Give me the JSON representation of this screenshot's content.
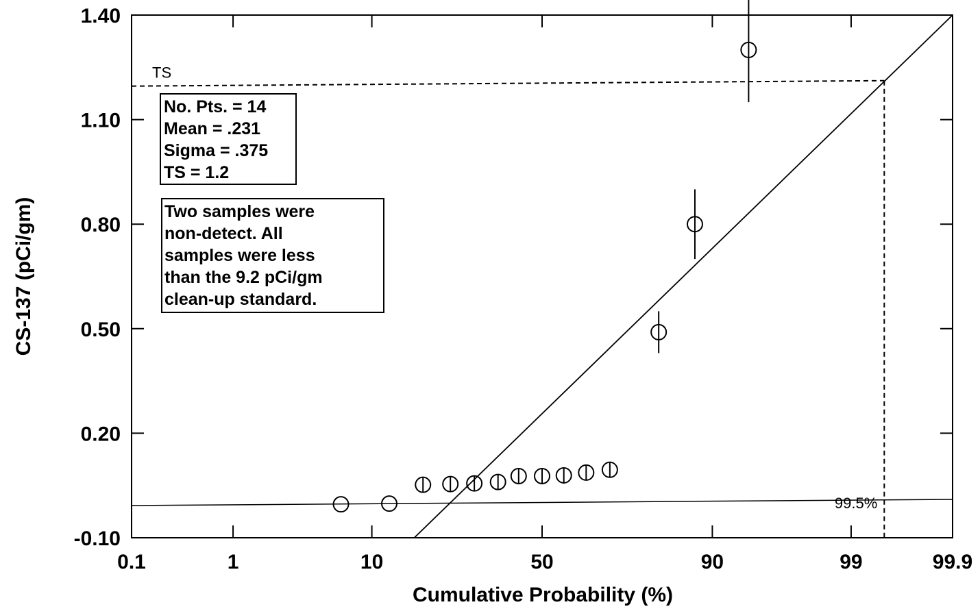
{
  "chart_data": {
    "type": "scatter",
    "title": "",
    "xlabel": "Cumulative Probability (%)",
    "ylabel": "CS-137 (pCi/gm)",
    "x_scale": "probability",
    "x_ticks": [
      "0.1",
      "1",
      "10",
      "50",
      "90",
      "99",
      "99.9"
    ],
    "y_ticks": [
      "1.40",
      "1.10",
      "0.80",
      "0.50",
      "0.20",
      "-0.10"
    ],
    "ylim": [
      -0.1,
      1.4
    ],
    "xlim": [
      0.1,
      99.9
    ],
    "grid": false,
    "points": [
      {
        "x": 6.5,
        "y": -0.004,
        "err": 0
      },
      {
        "x": 12.5,
        "y": -0.002,
        "err": 0
      },
      {
        "x": 18.5,
        "y": 0.052,
        "err": 0.02
      },
      {
        "x": 24.5,
        "y": 0.054,
        "err": 0.02
      },
      {
        "x": 30.5,
        "y": 0.056,
        "err": 0.02
      },
      {
        "x": 37,
        "y": 0.06,
        "err": 0.02
      },
      {
        "x": 43,
        "y": 0.077,
        "err": 0.02
      },
      {
        "x": 50,
        "y": 0.077,
        "err": 0.02
      },
      {
        "x": 56.5,
        "y": 0.079,
        "err": 0.02
      },
      {
        "x": 63,
        "y": 0.087,
        "err": 0.02
      },
      {
        "x": 69.5,
        "y": 0.095,
        "err": 0.02
      },
      {
        "x": 81,
        "y": 0.49,
        "err": 0.06
      },
      {
        "x": 87.5,
        "y": 0.8,
        "err": 0.1
      },
      {
        "x": 94,
        "y": 1.3,
        "err": 0.15
      }
    ],
    "fit_line": [
      {
        "x": 16.8,
        "y": -0.1
      },
      {
        "x": 99.9,
        "y": 1.4
      }
    ],
    "ts_line": {
      "label": "TS",
      "y": 1.2
    },
    "confidence_line": {
      "label": "99.5%"
    },
    "drop_line": {
      "x": 99.5
    }
  },
  "stats": {
    "lines": [
      "No. Pts. =  14",
      "Mean =  .231",
      "Sigma =  .375",
      "TS =  1.2"
    ]
  },
  "note": {
    "lines": [
      "Two samples were",
      "non-detect. All",
      "samples were less",
      "than the 9.2 pCi/gm",
      "clean-up standard."
    ]
  }
}
